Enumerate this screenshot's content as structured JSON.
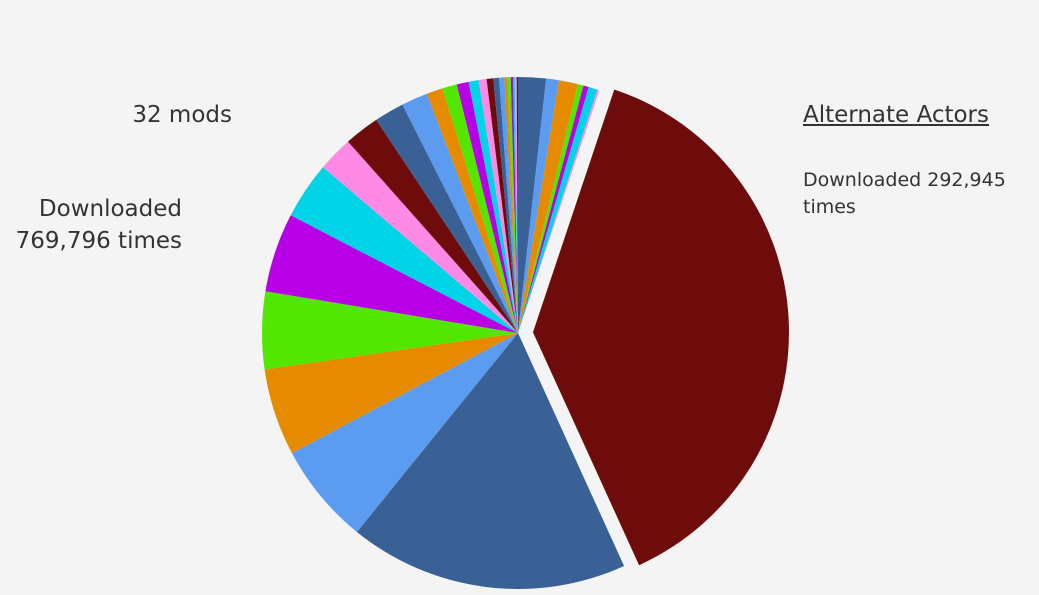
{
  "chart_data": {
    "type": "pie",
    "annotations": [
      "32 mods",
      "Downloaded 769,796 times"
    ],
    "categories": [
      null,
      null,
      null,
      null,
      null,
      null,
      null,
      "Alternate Actors",
      null,
      null,
      null,
      null,
      null,
      null,
      null,
      null,
      null,
      null,
      null,
      null,
      null,
      null,
      null,
      null,
      null,
      null,
      null,
      null,
      null,
      null,
      null,
      null
    ],
    "values": [
      13500,
      6200,
      9200,
      2800,
      2600,
      4300,
      1000,
      292945,
      135751,
      49200,
      42300,
      37600,
      38500,
      27800,
      17100,
      17100,
      14500,
      12800,
      7900,
      7100,
      5800,
      4900,
      3800,
      3200,
      2800,
      2600,
      1500,
      1500,
      1100,
      900,
      900,
      600
    ],
    "value_labels": [
      null,
      null,
      null,
      null,
      null,
      null,
      null,
      "Downloaded 292,945 times",
      null,
      null,
      null,
      null,
      null,
      null,
      null,
      null,
      null,
      null,
      null,
      null,
      null,
      null,
      null,
      null,
      null,
      null,
      null,
      null,
      null,
      null,
      null,
      null
    ],
    "colors": [
      "#3a6196",
      "#5b9cf0",
      "#e68a00",
      "#52e600",
      "#b800e6",
      "#00d4e6",
      "#ff8ae6",
      "#6e0c0c",
      "#3a6196",
      "#5b9cf0",
      "#e68a00",
      "#52e600",
      "#b800e6",
      "#00d4e6",
      "#ff8ae6",
      "#6e0c0c",
      "#3a6196",
      "#5b9cf0",
      "#e68a00",
      "#52e600",
      "#b800e6",
      "#00d4e6",
      "#ff8ae6",
      "#6e0c0c",
      "#3a6196",
      "#5b9cf0",
      "#e68a00",
      "#52e600",
      "#b800e6",
      "#00d4e6",
      "#ff8ae6",
      "#6e0c0c"
    ]
  }
}
